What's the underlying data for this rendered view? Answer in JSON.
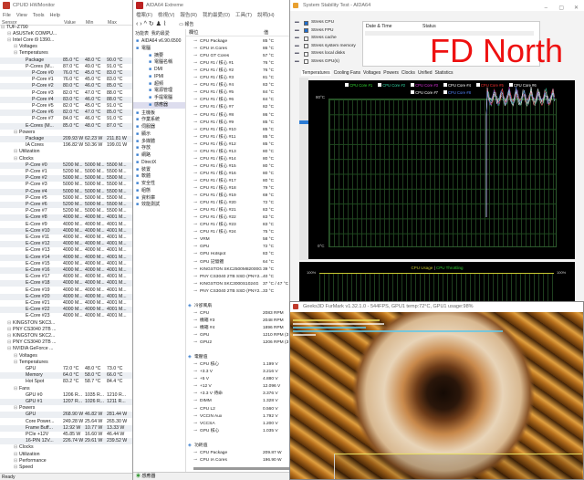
{
  "hwmonitor": {
    "title": "CPUID HWMonitor",
    "menu": [
      "File",
      "View",
      "Tools",
      "Help"
    ],
    "columns": [
      "Sensor",
      "Value",
      "Min",
      "Max"
    ],
    "status": "Ready",
    "rows": [
      [
        0,
        "TUF-Z790",
        "",
        "",
        ""
      ],
      [
        1,
        "ASUSTeK COMPU...",
        "",
        "",
        ""
      ],
      [
        1,
        "Intel Core i9 1390...",
        "",
        "",
        ""
      ],
      [
        2,
        "Voltages",
        "",
        "",
        ""
      ],
      [
        2,
        "Temperatures",
        "",
        "",
        ""
      ],
      [
        3,
        "Package",
        "85.0 °C",
        "48.0 °C",
        "90.0 °C"
      ],
      [
        3,
        "P-Cores (M...",
        "87.0 °C",
        "49.0 °C",
        "91.0 °C"
      ],
      [
        4,
        "P-Core #0",
        "76.0 °C",
        "45.0 °C",
        "83.0 °C"
      ],
      [
        4,
        "P-Core #1",
        "76.0 °C",
        "45.0 °C",
        "83.0 °C"
      ],
      [
        4,
        "P-Core #2",
        "80.0 °C",
        "46.0 °C",
        "85.0 °C"
      ],
      [
        4,
        "P-Core #3",
        "82.0 °C",
        "47.0 °C",
        "88.0 °C"
      ],
      [
        4,
        "P-Core #4",
        "83.0 °C",
        "46.0 °C",
        "88.0 °C"
      ],
      [
        4,
        "P-Core #5",
        "82.0 °C",
        "45.0 °C",
        "91.0 °C"
      ],
      [
        4,
        "P-Core #6",
        "82.0 °C",
        "47.0 °C",
        "85.0 °C"
      ],
      [
        4,
        "P-Core #7",
        "84.0 °C",
        "46.0 °C",
        "91.0 °C"
      ],
      [
        3,
        "E-Cores (M...",
        "85.0 °C",
        "48.0 °C",
        "87.0 °C"
      ],
      [
        2,
        "Powers",
        "",
        "",
        ""
      ],
      [
        3,
        "Package",
        "209.93 W",
        "62.23 W",
        "211.81 W"
      ],
      [
        3,
        "IA Cores",
        "196.82 W",
        "50.36 W",
        "199.01 W"
      ],
      [
        2,
        "Utilization",
        "",
        "",
        ""
      ],
      [
        2,
        "Clocks",
        "",
        "",
        ""
      ],
      [
        3,
        "P-Core #0",
        "5200 M...",
        "5000 M...",
        "5500 M..."
      ],
      [
        3,
        "P-Core #1",
        "5200 M...",
        "5000 M...",
        "5500 M..."
      ],
      [
        3,
        "P-Core #2",
        "5000 M...",
        "5000 M...",
        "5500 M..."
      ],
      [
        3,
        "P-Core #3",
        "5000 M...",
        "5000 M...",
        "5500 M..."
      ],
      [
        3,
        "P-Core #4",
        "5000 M...",
        "5000 M...",
        "5500 M..."
      ],
      [
        3,
        "P-Core #5",
        "5000 M...",
        "5000 M...",
        "5500 M..."
      ],
      [
        3,
        "P-Core #6",
        "5200 M...",
        "5000 M...",
        "5500 M..."
      ],
      [
        3,
        "P-Core #7",
        "5200 M...",
        "5000 M...",
        "5500 M..."
      ],
      [
        3,
        "E-Core #8",
        "4000 M...",
        "4000 M...",
        "4001 M..."
      ],
      [
        3,
        "E-Core #9",
        "4000 M...",
        "4000 M...",
        "4001 M..."
      ],
      [
        3,
        "E-Core #10",
        "4000 M...",
        "4000 M...",
        "4001 M..."
      ],
      [
        3,
        "E-Core #11",
        "4000 M...",
        "4000 M...",
        "4001 M..."
      ],
      [
        3,
        "E-Core #12",
        "4000 M...",
        "4000 M...",
        "4001 M..."
      ],
      [
        3,
        "E-Core #13",
        "4000 M...",
        "4000 M...",
        "4001 M..."
      ],
      [
        3,
        "E-Core #14",
        "4000 M...",
        "4000 M...",
        "4001 M..."
      ],
      [
        3,
        "E-Core #15",
        "4000 M...",
        "4000 M...",
        "4001 M..."
      ],
      [
        3,
        "E-Core #16",
        "4000 M...",
        "4000 M...",
        "4001 M..."
      ],
      [
        3,
        "E-Core #17",
        "4000 M...",
        "4000 M...",
        "4001 M..."
      ],
      [
        3,
        "E-Core #18",
        "4000 M...",
        "4000 M...",
        "4001 M..."
      ],
      [
        3,
        "E-Core #19",
        "4000 M...",
        "4000 M...",
        "4001 M..."
      ],
      [
        3,
        "E-Core #20",
        "4000 M...",
        "4000 M...",
        "4001 M..."
      ],
      [
        3,
        "E-Core #21",
        "4000 M...",
        "4000 M...",
        "4001 M..."
      ],
      [
        3,
        "E-Core #22",
        "4000 M...",
        "4000 M...",
        "4001 M..."
      ],
      [
        3,
        "E-Core #23",
        "4000 M...",
        "4000 M...",
        "4001 M..."
      ],
      [
        1,
        "KINGSTON SKC3...",
        "",
        "",
        ""
      ],
      [
        1,
        "PNY CS3040 2TB ...",
        "",
        "",
        ""
      ],
      [
        1,
        "KINGSTON SKC2...",
        "",
        "",
        ""
      ],
      [
        1,
        "PNY CS3040 2TB ...",
        "",
        "",
        ""
      ],
      [
        1,
        "NVIDIA GeForce ...",
        "",
        "",
        ""
      ],
      [
        2,
        "Voltages",
        "",
        "",
        ""
      ],
      [
        2,
        "Temperatures",
        "",
        "",
        ""
      ],
      [
        3,
        "GPU",
        "72.0 °C",
        "48.0 °C",
        "73.0 °C"
      ],
      [
        3,
        "Memory",
        "64.0 °C",
        "58.0 °C",
        "66.0 °C"
      ],
      [
        3,
        "Hot Spot",
        "83.2 °C",
        "58.7 °C",
        "84.4 °C"
      ],
      [
        2,
        "Fans",
        "",
        "",
        ""
      ],
      [
        3,
        "GPU #0",
        "1206 R...",
        "1035 R...",
        "1210 R..."
      ],
      [
        3,
        "GPU #1",
        "1207 R...",
        "1026 R...",
        "1211 R..."
      ],
      [
        2,
        "Powers",
        "",
        "",
        ""
      ],
      [
        3,
        "GPU",
        "268.90 W",
        "46.82 W",
        "281.44 W"
      ],
      [
        3,
        "Core Power...",
        "249.28 W",
        "25.64 W",
        "265.30 W"
      ],
      [
        3,
        "Frame Buff...",
        "12.92 W",
        "10.77 W",
        "13.33 W"
      ],
      [
        3,
        "PCIe +12V",
        "45.85 W",
        "16.60 W",
        "46.44 W"
      ],
      [
        3,
        "16-PIN 12V...",
        "226.74 W",
        "29.61 W",
        "239.52 W"
      ],
      [
        2,
        "Clocks",
        "",
        "",
        ""
      ],
      [
        2,
        "Utilization",
        "",
        "",
        ""
      ],
      [
        2,
        "Performance",
        "",
        "",
        ""
      ],
      [
        2,
        "Speed",
        "",
        "",
        ""
      ]
    ]
  },
  "aida": {
    "title": "AIDA64 Extreme",
    "menu": [
      "檔案(F)",
      "檢視(V)",
      "報告(R)",
      "我的最愛(O)",
      "工具(T)",
      "說明(H)"
    ],
    "toolbar_report": "報告",
    "left_tabs": [
      "功能表",
      "我的最愛"
    ],
    "columns": [
      "欄位",
      "值"
    ],
    "status": "感應器",
    "tree": [
      [
        0,
        "AIDA64 v6.90.6500"
      ],
      [
        0,
        "電腦"
      ],
      [
        1,
        "摘要"
      ],
      [
        1,
        "電腦名稱"
      ],
      [
        1,
        "DMI"
      ],
      [
        1,
        "IPMI"
      ],
      [
        1,
        "超頻"
      ],
      [
        1,
        "電源管理"
      ],
      [
        1,
        "手提電腦"
      ],
      [
        1,
        "感應器"
      ],
      [
        0,
        "主機板"
      ],
      [
        0,
        "作業系統"
      ],
      [
        0,
        "伺服器"
      ],
      [
        0,
        "顯示"
      ],
      [
        0,
        "多媒體"
      ],
      [
        0,
        "存放"
      ],
      [
        0,
        "網路"
      ],
      [
        0,
        "DirectX"
      ],
      [
        0,
        "裝置"
      ],
      [
        0,
        "軟體"
      ],
      [
        0,
        "安全性"
      ],
      [
        0,
        "組態"
      ],
      [
        0,
        "資料庫"
      ],
      [
        0,
        "效能測試"
      ]
    ],
    "rows": [
      [
        "CPU Package",
        "85 °C"
      ],
      [
        "CPU IA Cores",
        "86 °C"
      ],
      [
        "CPU GT Cores",
        "57 °C"
      ],
      [
        "CPU #1 / 核心 #1",
        "76 °C"
      ],
      [
        "CPU #1 / 核心 #2",
        "76 °C"
      ],
      [
        "CPU #1 / 核心 #3",
        "81 °C"
      ],
      [
        "CPU #1 / 核心 #4",
        "83 °C"
      ],
      [
        "CPU #1 / 核心 #5",
        "84 °C"
      ],
      [
        "CPU #1 / 核心 #6",
        "84 °C"
      ],
      [
        "CPU #1 / 核心 #7",
        "82 °C"
      ],
      [
        "CPU #1 / 核心 #8",
        "86 °C"
      ],
      [
        "CPU #1 / 核心 #9",
        "85 °C"
      ],
      [
        "CPU #1 / 核心 #10",
        "85 °C"
      ],
      [
        "CPU #1 / 核心 #11",
        "85 °C"
      ],
      [
        "CPU #1 / 核心 #12",
        "85 °C"
      ],
      [
        "CPU #1 / 核心 #13",
        "80 °C"
      ],
      [
        "CPU #1 / 核心 #14",
        "80 °C"
      ],
      [
        "CPU #1 / 核心 #15",
        "80 °C"
      ],
      [
        "CPU #1 / 核心 #16",
        "80 °C"
      ],
      [
        "CPU #1 / 核心 #17",
        "80 °C"
      ],
      [
        "CPU #1 / 核心 #18",
        "79 °C"
      ],
      [
        "CPU #1 / 核心 #19",
        "69 °C"
      ],
      [
        "CPU #1 / 核心 #20",
        "72 °C"
      ],
      [
        "CPU #1 / 核心 #21",
        "83 °C"
      ],
      [
        "CPU #1 / 核心 #22",
        "83 °C"
      ],
      [
        "CPU #1 / 核心 #23",
        "83 °C"
      ],
      [
        "CPU #1 / 核心 #24",
        "75 °C"
      ],
      [
        "VRM",
        "58 °C"
      ],
      [
        "GPU",
        "72 °C"
      ],
      [
        "GPU Hotspot",
        "83 °C"
      ],
      [
        "GPU 記憶體",
        "64 °C"
      ],
      [
        "KINGSTON SKC2500M82000G",
        "39 °C"
      ],
      [
        "PNY CS3040 2TB SSD (PNY2...",
        "40 °C"
      ],
      [
        "KINGSTON SKC3000S1024G",
        "37 °C / 47 °C"
      ],
      [
        "PNY CS3040 2TB SSD (PNY2...",
        "33 °C"
      ],
      [
        "",
        ""
      ],
      [
        "冷卻風扇",
        "",
        1
      ],
      [
        "CPU",
        "2083 RPM"
      ],
      [
        "機箱 #3",
        "2048 RPM"
      ],
      [
        "機箱 #4",
        "1896 RPM"
      ],
      [
        "GPU",
        "1210 RPM (3"
      ],
      [
        "GPU2",
        "1206 RPM (3"
      ],
      [
        "",
        ""
      ],
      [
        "電壓值",
        "",
        1
      ],
      [
        "CPU 核心",
        "1.199 V"
      ],
      [
        "+3.3 V",
        "3.216 V"
      ],
      [
        "+5 V",
        "4.880 V"
      ],
      [
        "+12 V",
        "12.096 V"
      ],
      [
        "+3.3 V 待命",
        "3.376 V"
      ],
      [
        "DIMM",
        "1.328 V"
      ],
      [
        "CPU L2",
        "0.560 V"
      ],
      [
        "VCCIN Aux",
        "1.792 V"
      ],
      [
        "VCCSA",
        "1.200 V"
      ],
      [
        "GPU 核心",
        "1.035 V"
      ],
      [
        "",
        ""
      ],
      [
        "功耗值",
        "",
        1
      ],
      [
        "CPU Package",
        "209.87 W"
      ],
      [
        "CPU IA Cores",
        "196.90 W"
      ]
    ]
  },
  "stability": {
    "title": "System Stability Test - AIDA64",
    "options": [
      {
        "label": "Stress CPU",
        "checked": true
      },
      {
        "label": "Stress FPU",
        "checked": true
      },
      {
        "label": "Stress cache",
        "checked": false
      },
      {
        "label": "Stress system memory",
        "checked": false
      },
      {
        "label": "Stress local disks",
        "checked": false
      },
      {
        "label": "Stress GPU(s)",
        "checked": false
      }
    ],
    "log_columns": [
      "Date & Time",
      "Status"
    ],
    "watermark": "FD North",
    "tabs": [
      "Temperatures",
      "Cooling Fans",
      "Voltages",
      "Powers",
      "Clocks",
      "Unified",
      "Statistics"
    ],
    "legend": [
      {
        "label": "CPU Core #1",
        "color": "#33dd33"
      },
      {
        "label": "CPU Core #2",
        "color": "#33ddaa"
      },
      {
        "label": "CPU Core #3",
        "color": "#dd33dd"
      },
      {
        "label": "CPU Core #4",
        "color": "#ffffff"
      },
      {
        "label": "CPU Core #5",
        "color": "#ff3333"
      },
      {
        "label": "CPU Core #6",
        "color": "#ffffff"
      },
      {
        "label": "CPU Core #7",
        "color": "#ffffff"
      },
      {
        "label": "CPU Core #8",
        "color": "#5588ff"
      }
    ],
    "temp_ymax": "80°C",
    "temp_ymin": "0°C",
    "usage_title": "CPU Usage",
    "usage_sep": "|",
    "throttle_title": "CPU Throttling",
    "usage_left": "100%",
    "usage_right": "100%"
  },
  "furmark": {
    "title": "Geeks3D FurMark v1.32.1.0 - 544FPS, GPU1 temp:72°C, GPU1 usage:98%"
  }
}
